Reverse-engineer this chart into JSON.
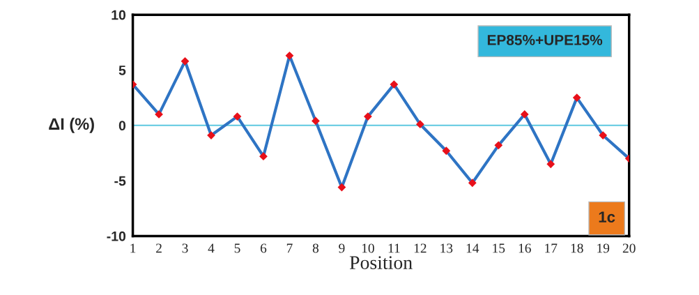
{
  "chart_data": {
    "type": "line",
    "xlabel": "Position",
    "ylabel": "ΔI (%)",
    "categories": [
      "1",
      "2",
      "3",
      "4",
      "5",
      "6",
      "7",
      "8",
      "9",
      "10",
      "11",
      "12",
      "13",
      "14",
      "15",
      "16",
      "17",
      "18",
      "19",
      "20"
    ],
    "series": [
      {
        "color": "#2e74c4",
        "values": [
          3.7,
          1.0,
          5.8,
          -0.9,
          0.8,
          -2.8,
          6.3,
          0.4,
          -5.6,
          0.8,
          3.7,
          0.1,
          -2.3,
          -5.2,
          -1.8,
          1.0,
          -3.5,
          2.5,
          -0.9,
          -3.0
        ]
      }
    ],
    "ylim": [
      -10,
      10
    ],
    "yticks": [
      -10,
      -5,
      0,
      5,
      10
    ],
    "ref_lines": [
      {
        "axis": "y",
        "value": 0,
        "color": "#5ec8e0"
      }
    ],
    "annotations": [
      "EP85%+UPE15%",
      "1c"
    ],
    "marker": "diamond",
    "line_style": "solid",
    "grid": false,
    "legend": false
  }
}
